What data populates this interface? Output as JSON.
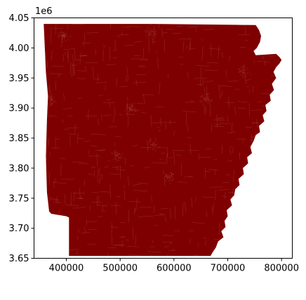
{
  "chart_data": {
    "type": "map",
    "title": "",
    "xlabel": "",
    "ylabel": "",
    "y_offset_label": "1e6",
    "xlim": [
      340000,
      820000
    ],
    "ylim": [
      3650000,
      4050000
    ],
    "x_ticks": [
      {
        "value": 400000,
        "label": "400000"
      },
      {
        "value": 500000,
        "label": "500000"
      },
      {
        "value": 600000,
        "label": "600000"
      },
      {
        "value": 700000,
        "label": "700000"
      },
      {
        "value": 800000,
        "label": "800000"
      }
    ],
    "y_ticks": [
      {
        "value": 3650000,
        "label": "3.65"
      },
      {
        "value": 3700000,
        "label": "3.70"
      },
      {
        "value": 3750000,
        "label": "3.75"
      },
      {
        "value": 3800000,
        "label": "3.80"
      },
      {
        "value": 3850000,
        "label": "3.85"
      },
      {
        "value": 3900000,
        "label": "3.90"
      },
      {
        "value": 3950000,
        "label": "3.95"
      },
      {
        "value": 4000000,
        "label": "4.00"
      },
      {
        "value": 4050000,
        "label": "4.05"
      }
    ],
    "fill_color": "#7f0000",
    "edge_color": "#c07070",
    "grid": false,
    "legend": "none"
  }
}
